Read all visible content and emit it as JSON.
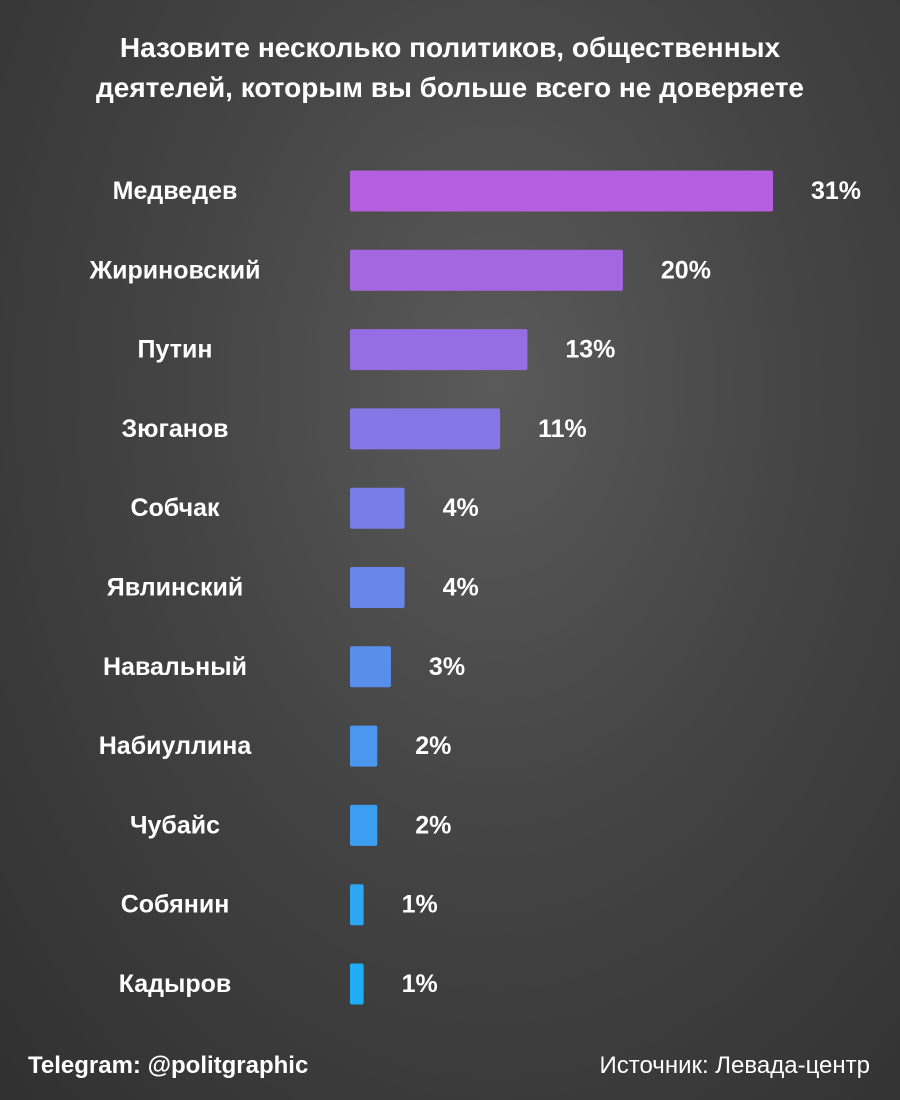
{
  "title": {
    "line1": "Назовите несколько политиков, общественных",
    "line2": "деятелей, которым вы больше всего не доверяете"
  },
  "footer": {
    "telegram": "Telegram: @politgraphic",
    "source": "Источник: Левада-центр"
  },
  "colors": {
    "top": "#b45ee0",
    "bottom": "#1eaef5"
  },
  "chart_data": {
    "type": "bar",
    "orientation": "horizontal",
    "categories": [
      "Медведев",
      "Жириновский",
      "Путин",
      "Зюганов",
      "Собчак",
      "Явлинский",
      "Навальный",
      "Набиуллина",
      "Чубайс",
      "Собянин",
      "Кадыров"
    ],
    "values": [
      31,
      20,
      13,
      11,
      4,
      4,
      3,
      2,
      2,
      1,
      1
    ],
    "value_labels": [
      "31%",
      "20%",
      "13%",
      "11%",
      "4%",
      "4%",
      "3%",
      "2%",
      "2%",
      "1%",
      "1%"
    ],
    "unit": "%",
    "xlim": [
      0,
      31
    ],
    "grid": false,
    "legend": "none"
  }
}
